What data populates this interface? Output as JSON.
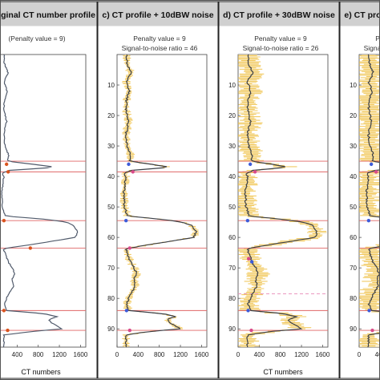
{
  "chart_data": [
    {
      "type": "line",
      "title": "b) Original CT number profile",
      "annotations": [
        "(Penalty value = 9)"
      ],
      "xlabel": "CT numbers",
      "ylabel": "",
      "xlim": [
        0,
        1700
      ],
      "ylim": [
        0,
        96
      ],
      "xticks": [
        "0",
        "400",
        "800",
        "1200",
        "1600"
      ],
      "yticks": [
        "10",
        "20",
        "30",
        "40",
        "50",
        "60",
        "70",
        "80",
        "90"
      ],
      "noise_band": false,
      "boundaries": [
        35,
        38.5,
        54.5,
        63.5,
        84,
        90.5
      ],
      "dashed_boundaries": [],
      "profile": [
        [
          0,
          150
        ],
        [
          3,
          160
        ],
        [
          6,
          230
        ],
        [
          9,
          150
        ],
        [
          12,
          210
        ],
        [
          15,
          160
        ],
        [
          18,
          150
        ],
        [
          22,
          200
        ],
        [
          26,
          150
        ],
        [
          30,
          170
        ],
        [
          33,
          240
        ],
        [
          35,
          220
        ],
        [
          36,
          700
        ],
        [
          37,
          1150
        ],
        [
          38,
          250
        ],
        [
          39,
          120
        ],
        [
          40,
          150
        ],
        [
          45,
          110
        ],
        [
          50,
          120
        ],
        [
          53,
          180
        ],
        [
          54,
          900
        ],
        [
          55,
          1350
        ],
        [
          56,
          1450
        ],
        [
          58,
          1550
        ],
        [
          60,
          1500
        ],
        [
          62,
          800
        ],
        [
          63.5,
          200
        ],
        [
          64,
          150
        ],
        [
          68,
          230
        ],
        [
          70,
          310
        ],
        [
          72,
          350
        ],
        [
          74,
          300
        ],
        [
          76,
          330
        ],
        [
          78,
          260
        ],
        [
          80,
          200
        ],
        [
          82,
          160
        ],
        [
          84,
          200
        ],
        [
          85,
          900
        ],
        [
          86,
          1150
        ],
        [
          87,
          1000
        ],
        [
          88,
          1050
        ],
        [
          89,
          1150
        ],
        [
          90,
          1250
        ],
        [
          91,
          600
        ],
        [
          92,
          150
        ],
        [
          96,
          150
        ]
      ],
      "markers": [
        {
          "x": 200,
          "y": 36,
          "color": "#d9541e"
        },
        {
          "x": 230,
          "y": 38.5,
          "color": "#d9541e"
        },
        {
          "x": 150,
          "y": 54.5,
          "color": "#d9541e"
        },
        {
          "x": 650,
          "y": 63.5,
          "color": "#d9541e"
        },
        {
          "x": 150,
          "y": 84,
          "color": "#d9541e"
        },
        {
          "x": 220,
          "y": 90.5,
          "color": "#d9541e"
        }
      ]
    },
    {
      "type": "line",
      "title": "c) CT profile + 10dBW noise",
      "annotations": [
        "Penalty value = 9",
        "Signal-to-noise ratio = 46"
      ],
      "xlabel": "",
      "ylabel": "",
      "xlim": [
        0,
        1700
      ],
      "ylim": [
        0,
        96
      ],
      "xticks": [
        "0",
        "400",
        "800",
        "1200",
        "1600"
      ],
      "yticks": [
        "10",
        "20",
        "30",
        "40",
        "50",
        "60",
        "70",
        "80",
        "90"
      ],
      "noise_band": true,
      "noise_amplitude": 60,
      "boundaries": [
        35,
        38.5,
        54.5,
        63.5,
        84,
        90.5
      ],
      "dashed_boundaries": [],
      "profile": [
        [
          0,
          180
        ],
        [
          3,
          190
        ],
        [
          6,
          260
        ],
        [
          9,
          170
        ],
        [
          12,
          230
        ],
        [
          15,
          180
        ],
        [
          18,
          170
        ],
        [
          22,
          220
        ],
        [
          26,
          170
        ],
        [
          30,
          190
        ],
        [
          33,
          260
        ],
        [
          35,
          240
        ],
        [
          36,
          650
        ],
        [
          37,
          1000
        ],
        [
          38,
          280
        ],
        [
          39,
          130
        ],
        [
          40,
          170
        ],
        [
          45,
          130
        ],
        [
          50,
          140
        ],
        [
          53,
          200
        ],
        [
          54,
          800
        ],
        [
          55,
          1250
        ],
        [
          56,
          1400
        ],
        [
          58,
          1500
        ],
        [
          60,
          1450
        ],
        [
          62,
          750
        ],
        [
          63.5,
          220
        ],
        [
          64,
          170
        ],
        [
          68,
          250
        ],
        [
          70,
          330
        ],
        [
          72,
          370
        ],
        [
          74,
          320
        ],
        [
          76,
          350
        ],
        [
          78,
          280
        ],
        [
          80,
          220
        ],
        [
          82,
          180
        ],
        [
          84,
          220
        ],
        [
          85,
          850
        ],
        [
          86,
          1100
        ],
        [
          87,
          950
        ],
        [
          88,
          1000
        ],
        [
          89,
          1100
        ],
        [
          90,
          1200
        ],
        [
          91,
          550
        ],
        [
          92,
          170
        ],
        [
          96,
          170
        ]
      ],
      "markers": [
        {
          "x": 220,
          "y": 36,
          "color": "#3d5bd9"
        },
        {
          "x": 300,
          "y": 38.5,
          "color": "#d94b8a"
        },
        {
          "x": 170,
          "y": 54.5,
          "color": "#3d5bd9"
        },
        {
          "x": 240,
          "y": 63.5,
          "color": "#d94b8a"
        },
        {
          "x": 180,
          "y": 84,
          "color": "#3d5bd9"
        },
        {
          "x": 240,
          "y": 90.5,
          "color": "#d94b8a"
        }
      ]
    },
    {
      "type": "line",
      "title": "d) CT profile + 30dBW noise",
      "annotations": [
        "Penalty value = 9",
        "Signal-to-noise ratio = 26"
      ],
      "xlabel": "CT numbers",
      "ylabel": "",
      "xlim": [
        0,
        1700
      ],
      "ylim": [
        0,
        96
      ],
      "xticks": [
        "0",
        "400",
        "800",
        "1200",
        "1600"
      ],
      "yticks": [
        "10",
        "20",
        "30",
        "40",
        "50",
        "60",
        "70",
        "80",
        "90"
      ],
      "noise_band": true,
      "noise_amplitude": 170,
      "boundaries": [
        35,
        38.5,
        54.5,
        63.5,
        84,
        90.5
      ],
      "dashed_boundaries": [
        78.5
      ],
      "profile": [
        [
          0,
          180
        ],
        [
          3,
          200
        ],
        [
          6,
          270
        ],
        [
          9,
          180
        ],
        [
          12,
          240
        ],
        [
          15,
          190
        ],
        [
          18,
          180
        ],
        [
          22,
          230
        ],
        [
          26,
          180
        ],
        [
          30,
          200
        ],
        [
          33,
          270
        ],
        [
          35,
          250
        ],
        [
          36,
          650
        ],
        [
          37,
          950
        ],
        [
          38,
          290
        ],
        [
          39,
          140
        ],
        [
          40,
          180
        ],
        [
          45,
          140
        ],
        [
          50,
          150
        ],
        [
          53,
          210
        ],
        [
          54,
          800
        ],
        [
          55,
          1250
        ],
        [
          56,
          1400
        ],
        [
          58,
          1500
        ],
        [
          60,
          1450
        ],
        [
          62,
          750
        ],
        [
          63.5,
          230
        ],
        [
          64,
          180
        ],
        [
          68,
          260
        ],
        [
          70,
          340
        ],
        [
          72,
          380
        ],
        [
          74,
          330
        ],
        [
          76,
          360
        ],
        [
          78,
          290
        ],
        [
          80,
          230
        ],
        [
          82,
          190
        ],
        [
          84,
          230
        ],
        [
          85,
          850
        ],
        [
          86,
          1100
        ],
        [
          87,
          950
        ],
        [
          88,
          1000
        ],
        [
          89,
          1100
        ],
        [
          90,
          1200
        ],
        [
          91,
          550
        ],
        [
          92,
          180
        ],
        [
          96,
          180
        ]
      ],
      "markers": [
        {
          "x": 230,
          "y": 36,
          "color": "#3d5bd9"
        },
        {
          "x": 320,
          "y": 38.5,
          "color": "#d94b8a"
        },
        {
          "x": 180,
          "y": 54.5,
          "color": "#3d5bd9"
        },
        {
          "x": 200,
          "y": 67,
          "color": "#d94b8a"
        },
        {
          "x": 260,
          "y": 68,
          "color": "#3d5bd9"
        },
        {
          "x": 190,
          "y": 84,
          "color": "#3d5bd9"
        },
        {
          "x": 250,
          "y": 90.5,
          "color": "#d94b8a"
        }
      ]
    },
    {
      "type": "line",
      "title": "e) CT profile + 40dBW noise",
      "annotations": [
        "Penalty value = 9",
        "Signal-to-noise ratio = 16"
      ],
      "xlabel": "",
      "ylabel": "",
      "xlim": [
        0,
        1700
      ],
      "ylim": [
        0,
        96
      ],
      "xticks": [
        "0",
        "400",
        "800",
        "1200",
        "1600"
      ],
      "yticks": [
        "10",
        "20",
        "30",
        "40",
        "50",
        "60",
        "70",
        "80",
        "90"
      ],
      "noise_band": true,
      "noise_amplitude": 220,
      "boundaries": [
        35,
        38.5,
        54.5,
        63.5,
        84,
        90.5
      ],
      "dashed_boundaries": [],
      "profile": [
        [
          0,
          180
        ],
        [
          3,
          200
        ],
        [
          6,
          270
        ],
        [
          9,
          180
        ],
        [
          12,
          240
        ],
        [
          15,
          190
        ],
        [
          18,
          180
        ],
        [
          22,
          230
        ],
        [
          26,
          180
        ],
        [
          30,
          200
        ],
        [
          33,
          270
        ],
        [
          35,
          250
        ],
        [
          36,
          650
        ],
        [
          37,
          950
        ],
        [
          38,
          290
        ],
        [
          39,
          140
        ],
        [
          40,
          180
        ],
        [
          45,
          140
        ],
        [
          50,
          150
        ],
        [
          53,
          210
        ],
        [
          54,
          800
        ],
        [
          55,
          1250
        ],
        [
          56,
          1400
        ],
        [
          58,
          1500
        ],
        [
          60,
          1450
        ],
        [
          62,
          750
        ],
        [
          63.5,
          230
        ],
        [
          64,
          180
        ],
        [
          68,
          260
        ],
        [
          70,
          340
        ],
        [
          72,
          380
        ],
        [
          74,
          330
        ],
        [
          76,
          360
        ],
        [
          78,
          290
        ],
        [
          80,
          230
        ],
        [
          82,
          190
        ],
        [
          84,
          230
        ],
        [
          85,
          850
        ],
        [
          86,
          1100
        ],
        [
          87,
          950
        ],
        [
          88,
          1000
        ],
        [
          89,
          1100
        ],
        [
          90,
          1200
        ],
        [
          91,
          550
        ],
        [
          92,
          180
        ],
        [
          96,
          180
        ]
      ],
      "markers": [
        {
          "x": 230,
          "y": 36,
          "color": "#3d5bd9"
        },
        {
          "x": 320,
          "y": 38.5,
          "color": "#d94b8a"
        },
        {
          "x": 180,
          "y": 54.5,
          "color": "#3d5bd9"
        },
        {
          "x": 190,
          "y": 84,
          "color": "#3d5bd9"
        },
        {
          "x": 250,
          "y": 90.5,
          "color": "#d94b8a"
        }
      ]
    }
  ],
  "colors": {
    "header_bg": "#d0d0d0",
    "profile_line": "#505a6b",
    "profile_line_noisy": "#3b3f47",
    "noise_band": "#f0c24a",
    "boundary_line": "#e06666",
    "boundary_dashed": "#e889b8",
    "marker_default": "#d9541e"
  }
}
